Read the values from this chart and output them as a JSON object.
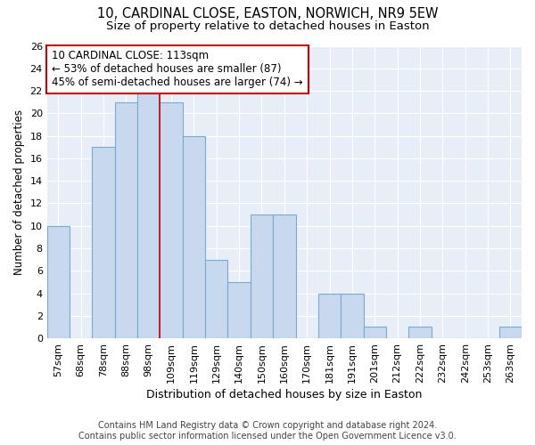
{
  "title1": "10, CARDINAL CLOSE, EASTON, NORWICH, NR9 5EW",
  "title2": "Size of property relative to detached houses in Easton",
  "xlabel": "Distribution of detached houses by size in Easton",
  "ylabel": "Number of detached properties",
  "categories": [
    "57sqm",
    "68sqm",
    "78sqm",
    "88sqm",
    "98sqm",
    "109sqm",
    "119sqm",
    "129sqm",
    "140sqm",
    "150sqm",
    "160sqm",
    "170sqm",
    "181sqm",
    "191sqm",
    "201sqm",
    "212sqm",
    "222sqm",
    "232sqm",
    "242sqm",
    "253sqm",
    "263sqm"
  ],
  "values": [
    10,
    0,
    17,
    21,
    22,
    21,
    18,
    7,
    5,
    11,
    11,
    0,
    4,
    4,
    1,
    0,
    1,
    0,
    0,
    0,
    1
  ],
  "bar_color": "#c8d8ee",
  "bar_edge_color": "#7aaad0",
  "property_line_x": 5,
  "annotation_text": "10 CARDINAL CLOSE: 113sqm\n← 53% of detached houses are smaller (87)\n45% of semi-detached houses are larger (74) →",
  "annotation_box_color": "white",
  "annotation_box_edge_color": "#cc0000",
  "vline_color": "#cc0000",
  "ylim": [
    0,
    26
  ],
  "yticks": [
    0,
    2,
    4,
    6,
    8,
    10,
    12,
    14,
    16,
    18,
    20,
    22,
    24,
    26
  ],
  "footer1": "Contains HM Land Registry data © Crown copyright and database right 2024.",
  "footer2": "Contains public sector information licensed under the Open Government Licence v3.0.",
  "title1_fontsize": 10.5,
  "title2_fontsize": 9.5,
  "xlabel_fontsize": 9,
  "ylabel_fontsize": 8.5,
  "tick_fontsize": 8,
  "annotation_fontsize": 8.5,
  "footer_fontsize": 7,
  "background_color": "#e8eef8"
}
